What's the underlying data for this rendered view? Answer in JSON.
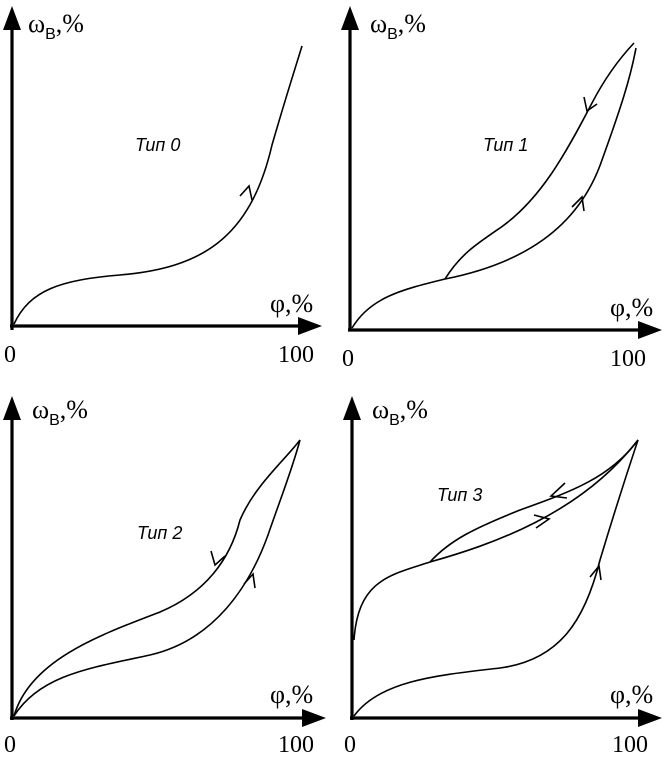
{
  "axes": {
    "y_symbol": "ω",
    "y_subscript": "В",
    "y_suffix": ",%",
    "x_label": "φ,%",
    "x_min_tick": "0",
    "x_max_tick": "100"
  },
  "panels": [
    {
      "id": "type0",
      "type_label": "Тип 0"
    },
    {
      "id": "type1",
      "type_label": "Тип 1"
    },
    {
      "id": "type2",
      "type_label": "Тип 2"
    },
    {
      "id": "type3",
      "type_label": "Тип 3"
    }
  ]
}
